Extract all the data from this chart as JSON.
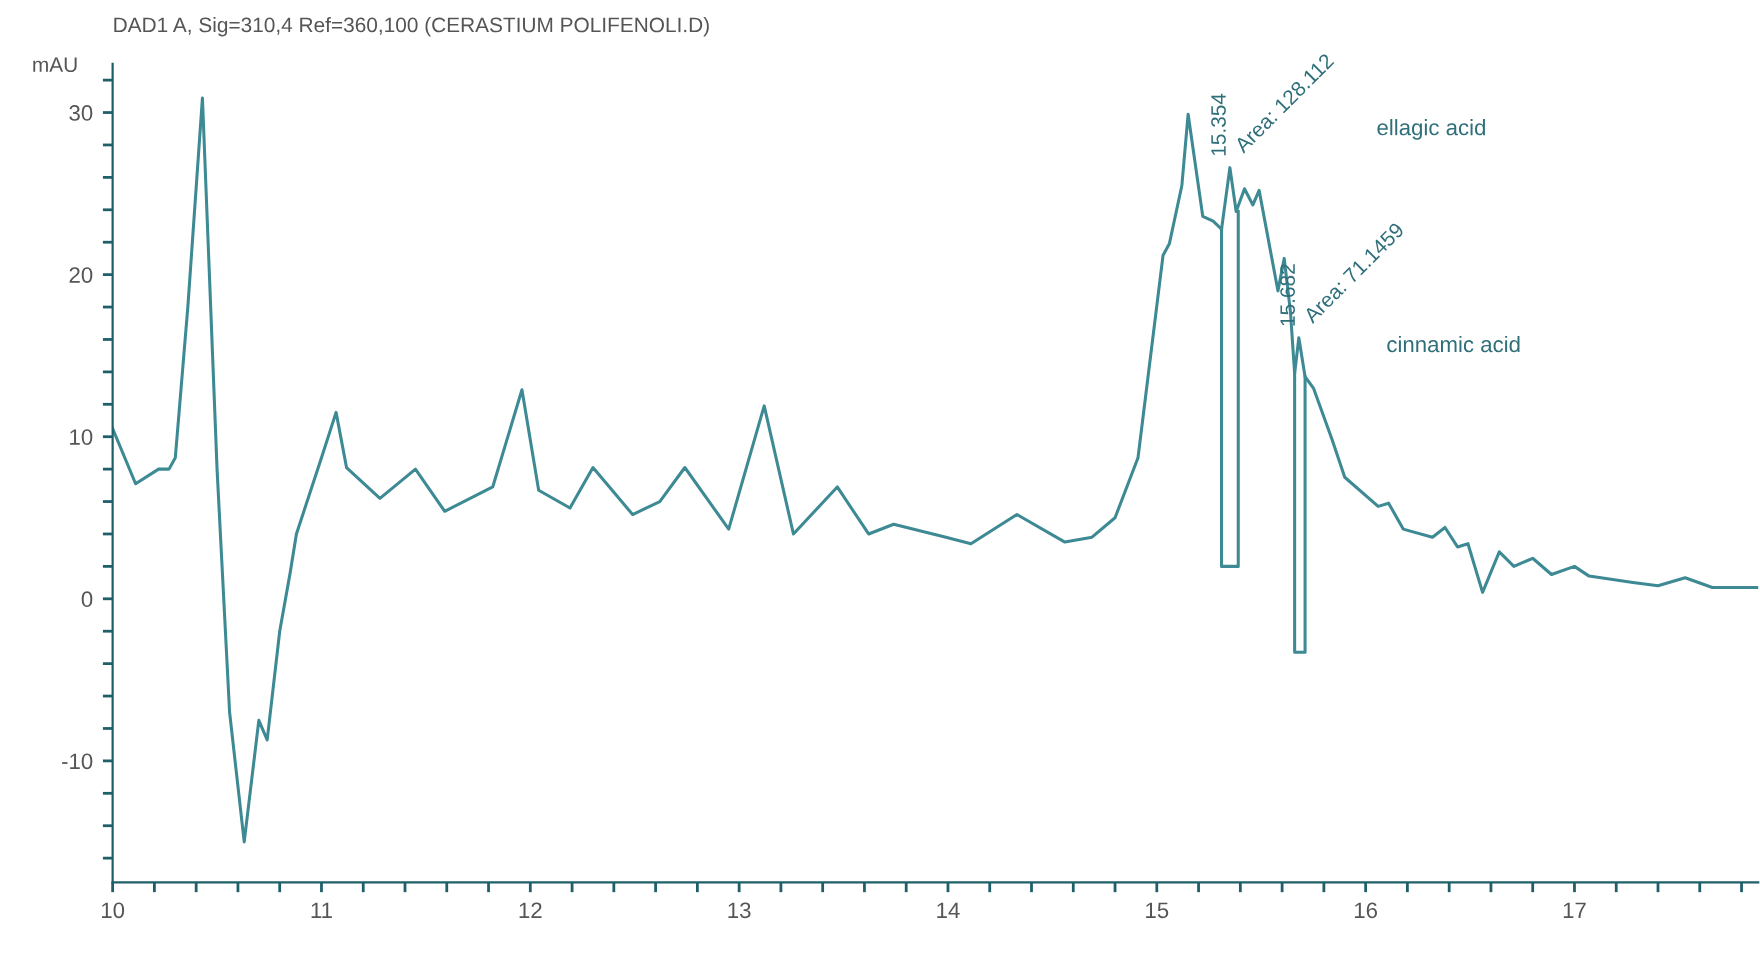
{
  "chart_data": {
    "type": "line",
    "title": "DAD1 A, Sig=310,4 Ref=360,100 (CERASTIUM POLIFENOLI.D)",
    "ylabel": "mAU",
    "xlim": [
      10,
      17.88
    ],
    "ylim": [
      -17.5,
      33
    ],
    "xticks": [
      10,
      {
        "value": 10.2,
        "label": null
      },
      {
        "value": 10.4,
        "label": null
      },
      {
        "value": 10.6,
        "label": null
      },
      {
        "value": 10.8,
        "label": null
      },
      11,
      {
        "value": 11.2,
        "label": null
      },
      {
        "value": 11.4,
        "label": null
      },
      {
        "value": 11.6,
        "label": null
      },
      {
        "value": 11.8,
        "label": null
      },
      12,
      {
        "value": 12.2,
        "label": null
      },
      {
        "value": 12.4,
        "label": null
      },
      {
        "value": 12.6,
        "label": null
      },
      {
        "value": 12.8,
        "label": null
      },
      13,
      {
        "value": 13.2,
        "label": null
      },
      {
        "value": 13.4,
        "label": null
      },
      {
        "value": 13.6,
        "label": null
      },
      {
        "value": 13.8,
        "label": null
      },
      14,
      {
        "value": 14.2,
        "label": null
      },
      {
        "value": 14.4,
        "label": null
      },
      {
        "value": 14.6,
        "label": null
      },
      {
        "value": 14.8,
        "label": null
      },
      15,
      {
        "value": 15.2,
        "label": null
      },
      {
        "value": 15.4,
        "label": null
      },
      {
        "value": 15.6,
        "label": null
      },
      {
        "value": 15.8,
        "label": null
      },
      16,
      {
        "value": 16.2,
        "label": null
      },
      {
        "value": 16.4,
        "label": null
      },
      {
        "value": 16.6,
        "label": null
      },
      {
        "value": 16.8,
        "label": null
      },
      17,
      {
        "value": 17.2,
        "label": null
      },
      {
        "value": 17.4,
        "label": null
      },
      {
        "value": 17.6,
        "label": null
      },
      {
        "value": 17.8,
        "label": null
      }
    ],
    "yticks": [
      {
        "value": -16,
        "label": null
      },
      {
        "value": -14,
        "label": null
      },
      {
        "value": -12,
        "label": null
      },
      -10,
      {
        "value": -8,
        "label": null
      },
      {
        "value": -6,
        "label": null
      },
      {
        "value": -4,
        "label": null
      },
      {
        "value": -2,
        "label": null
      },
      0,
      {
        "value": 2,
        "label": null
      },
      {
        "value": 4,
        "label": null
      },
      {
        "value": 6,
        "label": null
      },
      {
        "value": 8,
        "label": null
      },
      10,
      {
        "value": 12,
        "label": null
      },
      {
        "value": 14,
        "label": null
      },
      {
        "value": 16,
        "label": null
      },
      {
        "value": 18,
        "label": null
      },
      20,
      {
        "value": 22,
        "label": null
      },
      {
        "value": 24,
        "label": null
      },
      {
        "value": 26,
        "label": null
      },
      {
        "value": 28,
        "label": null
      },
      30,
      {
        "value": 32,
        "label": null
      }
    ],
    "grid": false,
    "legend": false,
    "marker": "none",
    "line_style": "solid",
    "series": [
      {
        "color": "#3d8a94",
        "x": [
          10.0,
          10.11,
          10.22,
          10.27,
          10.3,
          10.36,
          10.43,
          10.5,
          10.56,
          10.63,
          10.7,
          10.74,
          10.8,
          10.85,
          10.88,
          11.0,
          11.07,
          11.12,
          11.28,
          11.45,
          11.59,
          11.82,
          11.96,
          12.04,
          12.19,
          12.3,
          12.49,
          12.62,
          12.74,
          12.95,
          13.12,
          13.26,
          13.47,
          13.62,
          13.74,
          13.99,
          14.11,
          14.33,
          14.56,
          14.69,
          14.8,
          14.91,
          15.03,
          15.06,
          15.12,
          15.15,
          15.22,
          15.27,
          15.31,
          15.35,
          15.38,
          15.42,
          15.46,
          15.49,
          15.58,
          15.61,
          15.64,
          15.66,
          15.68,
          15.71,
          15.75,
          15.84,
          15.9,
          16.06,
          16.11,
          16.18,
          16.32,
          16.38,
          16.44,
          16.49,
          16.56,
          16.64,
          16.71,
          16.8,
          16.89,
          17.0,
          17.07,
          17.28,
          17.4,
          17.53,
          17.66,
          17.88
        ],
        "values": [
          10.5,
          7.1,
          8.0,
          8.0,
          8.7,
          18,
          30.9,
          8,
          -7,
          -15.0,
          -7.5,
          -8.7,
          -2,
          1.6,
          4.0,
          8.7,
          11.5,
          8.1,
          6.2,
          8.0,
          5.4,
          6.9,
          12.9,
          6.7,
          5.6,
          8.1,
          5.2,
          6.0,
          8.1,
          4.3,
          11.9,
          4.0,
          6.9,
          4.0,
          4.6,
          3.8,
          3.4,
          5.2,
          3.5,
          3.8,
          5.0,
          8.7,
          21.2,
          21.9,
          25.5,
          29.9,
          23.6,
          23.3,
          22.8,
          26.6,
          23.9,
          25.3,
          24.3,
          25.2,
          19.0,
          21.0,
          17.7,
          13.9,
          16.1,
          13.7,
          13.0,
          9.8,
          7.5,
          5.7,
          5.9,
          4.3,
          3.8,
          4.4,
          3.2,
          3.4,
          0.4,
          2.9,
          2.0,
          2.5,
          1.5,
          2.0,
          1.4,
          1.0,
          0.8,
          1.3,
          0.7,
          0.7
        ]
      },
      {
        "color": "#3d8a94",
        "x": [
          15.31,
          15.31,
          15.39,
          15.39
        ],
        "values": [
          22.8,
          2.0,
          2.0,
          23.9
        ]
      },
      {
        "color": "#3d8a94",
        "x": [
          15.66,
          15.66,
          15.71,
          15.71
        ],
        "values": [
          13.9,
          -3.3,
          -3.3,
          13.7
        ]
      }
    ],
    "annotations": [
      "15.354",
      "Area: 128.112",
      "ellagic acid",
      "15.682",
      "Area: 71.1459",
      "cinnamic acid"
    ]
  }
}
